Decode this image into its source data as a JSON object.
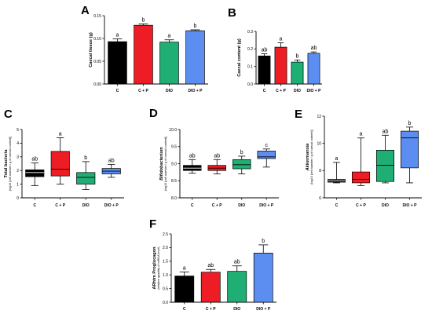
{
  "colors": {
    "C": "#000000",
    "C + P": "#ee1c25",
    "DIO": "#1fae73",
    "DIO + P": "#5b8ef0"
  },
  "chart_data": [
    {
      "panel": "A",
      "type": "bar",
      "ylabel": "Caecal tissue (g)",
      "ysub": "",
      "categories": [
        "C",
        "C + P",
        "DIO",
        "DIO + P"
      ],
      "ylim": [
        0,
        0.15
      ],
      "yticks": [
        0.0,
        0.05,
        0.1,
        0.15
      ],
      "tick_labels": [
        "0.00",
        "0.05",
        "0.10",
        "0.15"
      ],
      "values": [
        0.093,
        0.129,
        0.092,
        0.117
      ],
      "errors": [
        0.006,
        0.003,
        0.005,
        0.002
      ],
      "significance": [
        "a",
        "b",
        "a",
        "b"
      ]
    },
    {
      "panel": "B",
      "type": "bar",
      "ylabel": "Caecal content (g)",
      "ysub": "",
      "categories": [
        "C",
        "C + P",
        "DIO",
        "DIO + P"
      ],
      "ylim": [
        0,
        0.3
      ],
      "yticks": [
        0.0,
        0.1,
        0.2,
        0.3
      ],
      "tick_labels": [
        "0.0",
        "0.1",
        "0.2",
        "0.3"
      ],
      "values": [
        0.16,
        0.21,
        0.125,
        0.175
      ],
      "errors": [
        0.012,
        0.025,
        0.012,
        0.008
      ],
      "significance": [
        "ab",
        "a",
        "b",
        "ab"
      ]
    },
    {
      "panel": "C",
      "type": "box",
      "ylabel": "Total bacteria",
      "ysub": "(log10 [cell number / g of caecal content])",
      "categories": [
        "C",
        "C + P",
        "DIO",
        "DIO + P"
      ],
      "ylim": [
        0,
        5
      ],
      "yticks": [
        0,
        1,
        2,
        3,
        4,
        5
      ],
      "tick_labels": [
        "0",
        "1",
        "2",
        "3",
        "4",
        "5"
      ],
      "boxes": [
        {
          "min": 0.9,
          "q1": 1.55,
          "median": 1.85,
          "q3": 2.05,
          "max": 2.55
        },
        {
          "min": 1.0,
          "q1": 1.6,
          "median": 2.1,
          "q3": 3.4,
          "max": 4.4
        },
        {
          "min": 0.6,
          "q1": 1.0,
          "median": 1.5,
          "q3": 1.85,
          "max": 2.65
        },
        {
          "min": 1.5,
          "q1": 1.75,
          "median": 1.95,
          "q3": 2.15,
          "max": 2.45
        }
      ],
      "significance": [
        "ab",
        "a",
        "b",
        "ab"
      ]
    },
    {
      "panel": "D",
      "type": "box",
      "ylabel": "Bifidobacterium",
      "ylabel_italic": true,
      "ysub": "(log10 [cell number / g of caecal content])",
      "categories": [
        "C",
        "C + P",
        "DIO",
        "DIO + P"
      ],
      "ylim": [
        8.0,
        10.0
      ],
      "yticks": [
        8.0,
        8.5,
        9.0,
        9.5,
        10.0
      ],
      "tick_labels": [
        "8.0",
        "8.5",
        "9.0",
        "9.5",
        "10.0"
      ],
      "boxes": [
        {
          "min": 8.72,
          "q1": 8.8,
          "median": 8.87,
          "q3": 8.95,
          "max": 9.12
        },
        {
          "min": 8.7,
          "q1": 8.8,
          "median": 8.87,
          "q3": 8.95,
          "max": 9.12
        },
        {
          "min": 8.7,
          "q1": 8.85,
          "median": 8.97,
          "q3": 9.12,
          "max": 9.22
        },
        {
          "min": 8.9,
          "q1": 9.15,
          "median": 9.2,
          "q3": 9.37,
          "max": 9.43
        }
      ],
      "significance": [
        "ab",
        "ab",
        "b",
        "c"
      ]
    },
    {
      "panel": "E",
      "type": "box",
      "ylabel": "Akkermansia",
      "ylabel_italic": true,
      "ysub": "(log10 [cell number / g of caecal content])",
      "categories": [
        "C",
        "C + P",
        "DIO",
        "DIO + P"
      ],
      "ylim": [
        6,
        12
      ],
      "yticks": [
        6,
        8,
        10,
        12
      ],
      "tick_labels": [
        "6",
        "8",
        "10",
        "12"
      ],
      "boxes": [
        {
          "min": 7.1,
          "q1": 7.15,
          "median": 7.25,
          "q3": 7.35,
          "max": 8.6
        },
        {
          "min": 6.9,
          "q1": 7.1,
          "median": 7.35,
          "q3": 7.9,
          "max": 10.4
        },
        {
          "min": 7.1,
          "q1": 7.2,
          "median": 8.4,
          "q3": 9.5,
          "max": 10.6
        },
        {
          "min": 7.1,
          "q1": 8.2,
          "median": 10.4,
          "q3": 10.9,
          "max": 11.2
        }
      ],
      "significance": [
        "a",
        "a",
        "ab",
        "b"
      ]
    },
    {
      "panel": "F",
      "type": "bar",
      "ylabel": "ARhtm Proglucagon",
      "ysub": "(relative quantity of mRNA level)",
      "categories": [
        "C",
        "C + P",
        "DIO",
        "DIO + P"
      ],
      "ylim": [
        0,
        2.5
      ],
      "yticks": [
        0.0,
        0.5,
        1.0,
        1.5,
        2.0,
        2.5
      ],
      "tick_labels": [
        "0.0",
        "0.5",
        "1.0",
        "1.5",
        "2.0",
        "2.5"
      ],
      "values": [
        0.96,
        1.1,
        1.13,
        1.8
      ],
      "errors": [
        0.15,
        0.1,
        0.2,
        0.3
      ],
      "significance": [
        "a",
        "ab",
        "ab",
        "b"
      ]
    }
  ]
}
